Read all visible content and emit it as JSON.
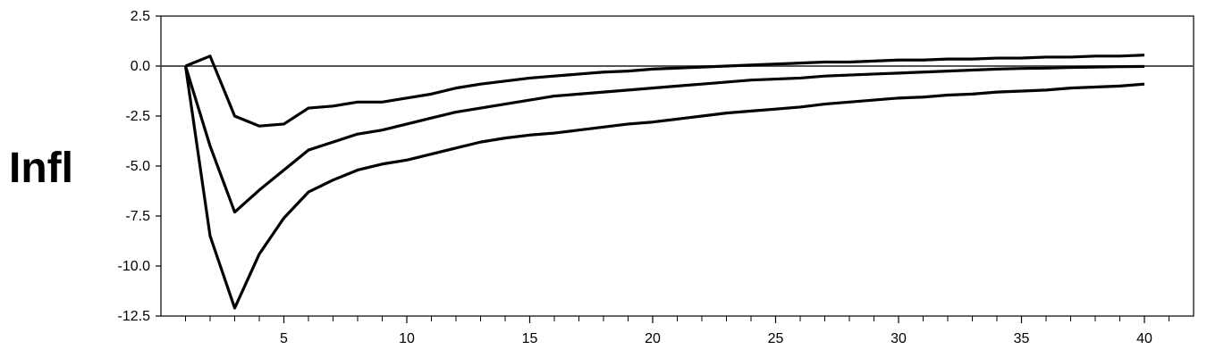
{
  "chart_data": {
    "type": "line",
    "ylabel": "Infl",
    "xlim": [
      0,
      42
    ],
    "ylim": [
      -12.5,
      2.5
    ],
    "x_ticks": [
      5,
      10,
      15,
      20,
      25,
      30,
      35,
      40
    ],
    "y_ticks": [
      2.5,
      0.0,
      -2.5,
      -5.0,
      -7.5,
      -10.0,
      -12.5
    ],
    "y_tick_labels": [
      "2.5",
      "0.0",
      "-2.5",
      "-5.0",
      "-7.5",
      "-10.0",
      "-12.5"
    ],
    "zero_line": true,
    "grid": false,
    "series": [
      {
        "x": [
          1,
          2,
          3,
          4,
          5,
          6,
          7,
          8,
          9,
          10,
          11,
          12,
          13,
          14,
          15,
          16,
          17,
          18,
          19,
          20,
          21,
          22,
          23,
          24,
          25,
          26,
          27,
          28,
          29,
          30,
          31,
          32,
          33,
          34,
          35,
          36,
          37,
          38,
          39,
          40
        ],
        "values": [
          0,
          0.5,
          -2.5,
          -3.0,
          -2.9,
          -2.1,
          -2.0,
          -1.8,
          -1.8,
          -1.6,
          -1.4,
          -1.1,
          -0.9,
          -0.75,
          -0.6,
          -0.5,
          -0.4,
          -0.3,
          -0.25,
          -0.15,
          -0.1,
          -0.05,
          0.0,
          0.05,
          0.1,
          0.15,
          0.2,
          0.2,
          0.25,
          0.3,
          0.3,
          0.35,
          0.35,
          0.4,
          0.4,
          0.45,
          0.45,
          0.5,
          0.5,
          0.55
        ]
      },
      {
        "x": [
          1,
          2,
          3,
          4,
          5,
          6,
          7,
          8,
          9,
          10,
          11,
          12,
          13,
          14,
          15,
          16,
          17,
          18,
          19,
          20,
          21,
          22,
          23,
          24,
          25,
          26,
          27,
          28,
          29,
          30,
          31,
          32,
          33,
          34,
          35,
          36,
          37,
          38,
          39,
          40
        ],
        "values": [
          0,
          -4.0,
          -7.3,
          -6.2,
          -5.2,
          -4.2,
          -3.8,
          -3.4,
          -3.2,
          -2.9,
          -2.6,
          -2.3,
          -2.1,
          -1.9,
          -1.7,
          -1.5,
          -1.4,
          -1.3,
          -1.2,
          -1.1,
          -1.0,
          -0.9,
          -0.8,
          -0.7,
          -0.65,
          -0.6,
          -0.5,
          -0.45,
          -0.4,
          -0.35,
          -0.3,
          -0.25,
          -0.2,
          -0.15,
          -0.12,
          -0.1,
          -0.07,
          -0.05,
          -0.03,
          -0.02
        ]
      },
      {
        "x": [
          1,
          2,
          3,
          4,
          5,
          6,
          7,
          8,
          9,
          10,
          11,
          12,
          13,
          14,
          15,
          16,
          17,
          18,
          19,
          20,
          21,
          22,
          23,
          24,
          25,
          26,
          27,
          28,
          29,
          30,
          31,
          32,
          33,
          34,
          35,
          36,
          37,
          38,
          39,
          40
        ],
        "values": [
          0,
          -8.5,
          -12.1,
          -9.4,
          -7.6,
          -6.3,
          -5.7,
          -5.2,
          -4.9,
          -4.7,
          -4.4,
          -4.1,
          -3.8,
          -3.6,
          -3.45,
          -3.35,
          -3.2,
          -3.05,
          -2.9,
          -2.8,
          -2.65,
          -2.5,
          -2.35,
          -2.25,
          -2.15,
          -2.05,
          -1.9,
          -1.8,
          -1.7,
          -1.6,
          -1.55,
          -1.45,
          -1.4,
          -1.3,
          -1.25,
          -1.2,
          -1.1,
          -1.05,
          -1.0,
          -0.9
        ]
      }
    ]
  }
}
